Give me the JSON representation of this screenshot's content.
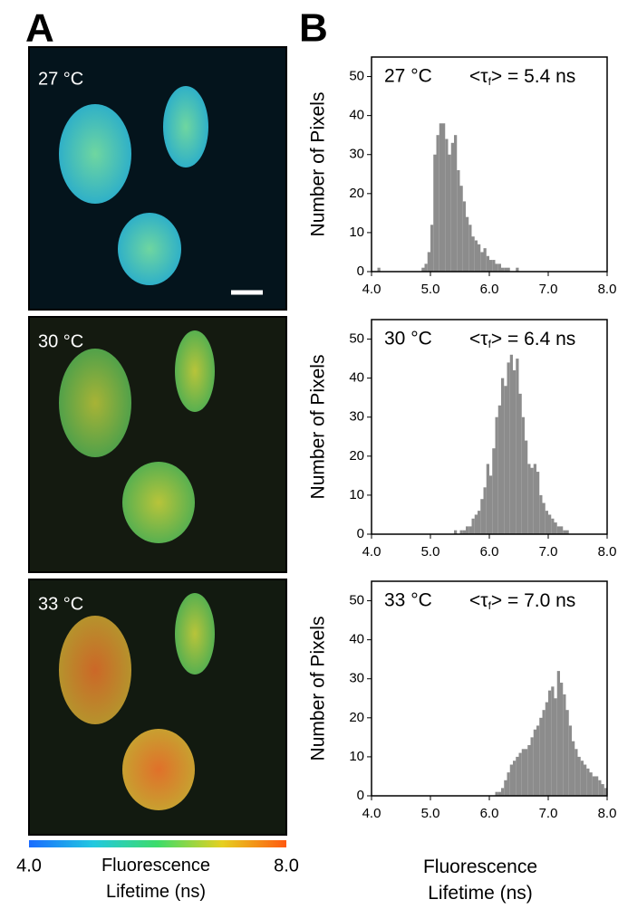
{
  "panel_labels": [
    "A",
    "B"
  ],
  "images": [
    {
      "label": "27 °C"
    },
    {
      "label": "30 °C"
    },
    {
      "label": "33 °C"
    }
  ],
  "colorbar": {
    "ticks": [
      {
        "value": 4,
        "label": "4.0"
      },
      {
        "value": 8,
        "label": "8.0"
      }
    ],
    "title": "Fluorescence Lifetime (ns)"
  },
  "chart_data": [
    {
      "type": "histogram",
      "label": "27 °C",
      "mean_label": [
        "<τ",
        "f",
        "> = 5.4 ns"
      ],
      "y_label": "Number of Pixels",
      "color": "#8c8c8c",
      "bins": [
        4,
        4.05,
        4.1,
        4.15,
        4.2,
        4.25,
        4.3,
        4.35,
        4.4,
        4.45,
        4.5,
        4.55,
        4.6,
        4.65,
        4.7,
        4.75,
        4.8,
        4.85,
        4.9,
        4.95,
        5,
        5.05,
        5.1,
        5.15,
        5.2,
        5.25,
        5.3,
        5.35,
        5.4,
        5.45,
        5.5,
        5.55,
        5.6,
        5.65,
        5.7,
        5.75,
        5.8,
        5.85,
        5.9,
        5.95,
        6,
        6.05,
        6.1,
        6.15,
        6.2,
        6.25,
        6.3,
        6.35,
        6.4,
        6.45,
        6.5,
        6.55,
        6.6,
        6.65,
        6.7,
        6.75,
        6.8,
        6.85,
        6.9,
        6.95,
        7,
        7.05,
        7.1,
        7.15,
        7.2,
        7.25,
        7.3,
        7.35,
        7.4,
        7.45,
        7.5,
        7.55,
        7.6,
        7.65,
        7.7,
        7.75,
        7.8,
        7.85,
        7.9,
        7.95,
        8
      ],
      "counts": [
        0,
        0,
        1,
        0,
        0,
        0,
        0,
        0,
        0,
        0,
        0,
        0,
        0,
        0,
        0,
        0,
        0,
        1,
        2,
        5,
        12,
        30,
        35,
        38,
        38,
        34,
        30,
        33,
        35,
        26,
        22,
        18,
        14,
        12,
        9,
        8,
        7,
        5,
        6,
        4,
        3,
        3,
        2,
        2,
        1,
        1,
        1,
        0,
        0,
        1,
        0,
        0,
        0,
        0,
        0,
        0,
        0,
        0,
        0,
        0,
        0,
        0,
        0,
        0,
        0,
        0,
        0,
        0,
        0,
        0,
        0,
        0,
        0,
        0,
        0,
        0,
        0,
        0,
        0,
        0
      ],
      "xlim": [
        4,
        8
      ],
      "ylim": [
        0,
        55
      ],
      "xticks": [
        {
          "value": 4,
          "label": "4.0"
        },
        {
          "value": 5,
          "label": "5.0"
        },
        {
          "value": 6,
          "label": "6.0"
        },
        {
          "value": 7,
          "label": "7.0"
        },
        {
          "value": 8,
          "label": "8.0"
        }
      ],
      "yticks": [
        0,
        10,
        20,
        30,
        40,
        50
      ]
    },
    {
      "type": "histogram",
      "label": "30 °C",
      "mean_label": [
        "<τ",
        "f",
        "> = 6.4 ns"
      ],
      "y_label": "Number of Pixels",
      "color": "#8c8c8c",
      "bins": [
        4,
        4.05,
        4.1,
        4.15,
        4.2,
        4.25,
        4.3,
        4.35,
        4.4,
        4.45,
        4.5,
        4.55,
        4.6,
        4.65,
        4.7,
        4.75,
        4.8,
        4.85,
        4.9,
        4.95,
        5,
        5.05,
        5.1,
        5.15,
        5.2,
        5.25,
        5.3,
        5.35,
        5.4,
        5.45,
        5.5,
        5.55,
        5.6,
        5.65,
        5.7,
        5.75,
        5.8,
        5.85,
        5.9,
        5.95,
        6,
        6.05,
        6.1,
        6.15,
        6.2,
        6.25,
        6.3,
        6.35,
        6.4,
        6.45,
        6.5,
        6.55,
        6.6,
        6.65,
        6.7,
        6.75,
        6.8,
        6.85,
        6.9,
        6.95,
        7,
        7.05,
        7.1,
        7.15,
        7.2,
        7.25,
        7.3,
        7.35,
        7.4,
        7.45,
        7.5,
        7.55,
        7.6,
        7.65,
        7.7,
        7.75,
        7.8,
        7.85,
        7.9,
        7.95,
        8
      ],
      "counts": [
        0,
        0,
        0,
        0,
        0,
        0,
        0,
        0,
        0,
        0,
        0,
        0,
        0,
        0,
        0,
        0,
        0,
        0,
        0,
        0,
        0,
        0,
        0,
        0,
        0,
        0,
        0,
        0,
        1,
        0,
        1,
        1,
        2,
        2,
        4,
        5,
        6,
        9,
        12,
        18,
        15,
        22,
        30,
        33,
        40,
        38,
        44,
        46,
        42,
        45,
        36,
        30,
        24,
        18,
        17,
        18,
        16,
        10,
        8,
        6,
        5,
        4,
        3,
        2,
        2,
        1,
        1,
        0,
        0,
        0,
        0,
        0,
        0,
        0,
        0,
        0,
        0,
        0,
        0,
        0
      ],
      "xlim": [
        4,
        8
      ],
      "ylim": [
        0,
        55
      ],
      "xticks": [
        {
          "value": 4,
          "label": "4.0"
        },
        {
          "value": 5,
          "label": "5.0"
        },
        {
          "value": 6,
          "label": "6.0"
        },
        {
          "value": 7,
          "label": "7.0"
        },
        {
          "value": 8,
          "label": "8.0"
        }
      ],
      "yticks": [
        0,
        10,
        20,
        30,
        40,
        50
      ]
    },
    {
      "type": "histogram",
      "label": "33 °C",
      "mean_label": [
        "<τ",
        "f",
        "> = 7.0 ns"
      ],
      "y_label": "Number of Pixels",
      "x_label": "Fluorescence Lifetime (ns)",
      "color": "#8c8c8c",
      "bins": [
        4,
        4.05,
        4.1,
        4.15,
        4.2,
        4.25,
        4.3,
        4.35,
        4.4,
        4.45,
        4.5,
        4.55,
        4.6,
        4.65,
        4.7,
        4.75,
        4.8,
        4.85,
        4.9,
        4.95,
        5,
        5.05,
        5.1,
        5.15,
        5.2,
        5.25,
        5.3,
        5.35,
        5.4,
        5.45,
        5.5,
        5.55,
        5.6,
        5.65,
        5.7,
        5.75,
        5.8,
        5.85,
        5.9,
        5.95,
        6,
        6.05,
        6.1,
        6.15,
        6.2,
        6.25,
        6.3,
        6.35,
        6.4,
        6.45,
        6.5,
        6.55,
        6.6,
        6.65,
        6.7,
        6.75,
        6.8,
        6.85,
        6.9,
        6.95,
        7,
        7.05,
        7.1,
        7.15,
        7.2,
        7.25,
        7.3,
        7.35,
        7.4,
        7.45,
        7.5,
        7.55,
        7.6,
        7.65,
        7.7,
        7.75,
        7.8,
        7.85,
        7.9,
        7.95,
        8
      ],
      "counts": [
        0,
        0,
        0,
        0,
        0,
        0,
        0,
        0,
        0,
        0,
        0,
        0,
        0,
        0,
        0,
        0,
        0,
        0,
        0,
        0,
        0,
        0,
        0,
        0,
        0,
        0,
        0,
        0,
        0,
        0,
        0,
        0,
        0,
        0,
        0,
        0,
        0,
        0,
        0,
        0,
        0,
        0,
        1,
        1,
        2,
        4,
        6,
        8,
        9,
        10,
        11,
        12,
        12,
        13,
        15,
        17,
        18,
        20,
        22,
        24,
        27,
        28,
        25,
        32,
        29,
        26,
        22,
        18,
        14,
        12,
        10,
        9,
        8,
        7,
        6,
        5,
        5,
        4,
        3,
        2
      ],
      "xlim": [
        4,
        8
      ],
      "ylim": [
        0,
        55
      ],
      "xticks": [
        {
          "value": 4,
          "label": "4.0"
        },
        {
          "value": 5,
          "label": "5.0"
        },
        {
          "value": 6,
          "label": "6.0"
        },
        {
          "value": 7,
          "label": "7.0"
        },
        {
          "value": 8,
          "label": "8.0"
        }
      ],
      "yticks": [
        0,
        10,
        20,
        30,
        40,
        50
      ]
    }
  ]
}
